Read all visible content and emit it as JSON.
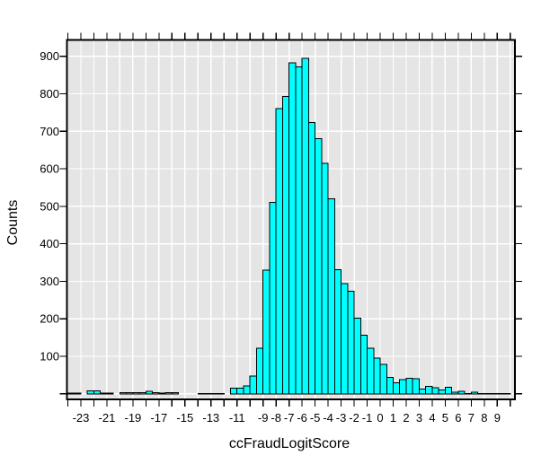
{
  "window": {
    "background": "#FFFFFF"
  },
  "chart_data": {
    "type": "bar",
    "subtype": "histogram",
    "title": "",
    "xlabel": "ccFraudLogitScore",
    "ylabel": "Counts",
    "legend": "none",
    "grid": true,
    "bin_start": -24.0,
    "bin_width": 0.5,
    "counts": [
      2,
      2,
      0,
      8,
      8,
      2,
      2,
      0,
      3,
      3,
      3,
      3,
      7,
      3,
      2,
      3,
      3,
      0,
      0,
      0,
      1,
      1,
      1,
      1,
      0,
      15,
      15,
      21,
      47,
      121,
      330,
      510,
      760,
      793,
      883,
      872,
      895,
      723,
      680,
      615,
      520,
      331,
      294,
      273,
      202,
      156,
      122,
      95,
      78,
      44,
      29,
      38,
      41,
      40,
      13,
      20,
      16,
      10,
      17,
      4,
      7,
      1,
      4,
      1,
      1,
      1,
      1,
      1
    ],
    "x_range": [
      -24.1,
      10.35
    ],
    "y_range": [
      -15,
      945
    ],
    "x_tick_values": [
      -24,
      -23,
      -22,
      -21,
      -20,
      -19,
      -18,
      -17,
      -16,
      -15,
      -14,
      -13,
      -12,
      -11,
      -10,
      -9,
      -8,
      -7,
      -6,
      -5,
      -4,
      -3,
      -2,
      -1,
      0,
      1,
      2,
      3,
      4,
      5,
      6,
      7,
      8,
      9,
      10
    ],
    "x_tick_labels": [
      {
        "value": -23,
        "label": "-23"
      },
      {
        "value": -21,
        "label": "-21"
      },
      {
        "value": -19,
        "label": "-19"
      },
      {
        "value": -17,
        "label": "-17"
      },
      {
        "value": -15,
        "label": "-15"
      },
      {
        "value": -13,
        "label": "-13"
      },
      {
        "value": -11,
        "label": "-11"
      },
      {
        "value": -9,
        "label": "-9"
      },
      {
        "value": -8,
        "label": "-8"
      },
      {
        "value": -7,
        "label": "-7"
      },
      {
        "value": -6,
        "label": "-6"
      },
      {
        "value": -5,
        "label": "-5"
      },
      {
        "value": -4,
        "label": "-4"
      },
      {
        "value": -3,
        "label": "-3"
      },
      {
        "value": -2,
        "label": "-2"
      },
      {
        "value": -1,
        "label": "-1"
      },
      {
        "value": 0,
        "label": "0"
      },
      {
        "value": 1,
        "label": "1"
      },
      {
        "value": 2,
        "label": "2"
      },
      {
        "value": 3,
        "label": "3"
      },
      {
        "value": 4,
        "label": "4"
      },
      {
        "value": 5,
        "label": "5"
      },
      {
        "value": 6,
        "label": "6"
      },
      {
        "value": 7,
        "label": "7"
      },
      {
        "value": 8,
        "label": "8"
      },
      {
        "value": 9,
        "label": "9"
      }
    ],
    "y_tick_values": [
      0,
      100,
      200,
      300,
      400,
      500,
      600,
      700,
      800,
      900
    ],
    "y_tick_labels": [
      {
        "value": 100,
        "label": "100"
      },
      {
        "value": 200,
        "label": "200"
      },
      {
        "value": 300,
        "label": "300"
      },
      {
        "value": 400,
        "label": "400"
      },
      {
        "value": 500,
        "label": "500"
      },
      {
        "value": 600,
        "label": "600"
      },
      {
        "value": 700,
        "label": "700"
      },
      {
        "value": 800,
        "label": "800"
      },
      {
        "value": 900,
        "label": "900"
      }
    ],
    "colors": {
      "bar_fill": "#00FFFF",
      "bar_stroke": "#000000",
      "panel_background": "#E5E5E5",
      "gridline": "#FFFFFF",
      "axis": "#000000",
      "tick_label": "#000000",
      "page_background": "#FFFFFF"
    }
  }
}
